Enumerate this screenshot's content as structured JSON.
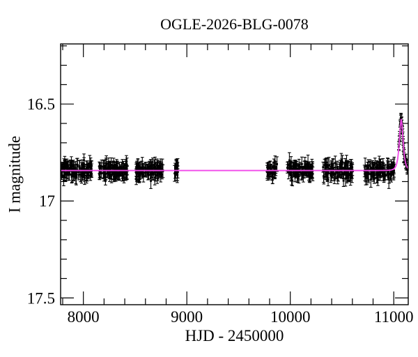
{
  "title": "OGLE-2026-BLG-0078",
  "axes": {
    "x_label": "HJD - 2450000",
    "y_label": "I magnitude"
  },
  "chart_data": {
    "type": "scatter",
    "title": "OGLE-2026-BLG-0078",
    "xlabel": "HJD - 2450000",
    "ylabel": "I magnitude",
    "x_range": [
      7780,
      11140
    ],
    "y_range_mag": [
      16.19,
      17.535
    ],
    "y_axis_inverted": true,
    "x_major_ticks": [
      8000,
      9000,
      10000,
      11000
    ],
    "x_tick_labels": [
      "8000",
      "9000",
      "10000",
      "11000"
    ],
    "x_minor_step": 200,
    "y_major_ticks": [
      16.5,
      17.0,
      17.5
    ],
    "y_tick_labels": [
      "16.5",
      "17",
      "17.5"
    ],
    "y_minor_step": 0.1,
    "baseline_mag": 16.843,
    "model": {
      "type": "paczynski",
      "t0": 11072,
      "tE": 20,
      "u0": 1.1,
      "peak_mag": 16.575
    },
    "seasons": [
      {
        "start": 7782,
        "end": 8085,
        "n": 110,
        "scatter": 0.02,
        "err": 0.03
      },
      {
        "start": 8150,
        "end": 8425,
        "n": 100,
        "scatter": 0.02,
        "err": 0.03
      },
      {
        "start": 8508,
        "end": 8775,
        "n": 90,
        "scatter": 0.02,
        "err": 0.03
      },
      {
        "start": 8880,
        "end": 8915,
        "n": 12,
        "scatter": 0.022,
        "err": 0.032
      },
      {
        "start": 9775,
        "end": 9885,
        "n": 30,
        "scatter": 0.02,
        "err": 0.03
      },
      {
        "start": 9970,
        "end": 10220,
        "n": 90,
        "scatter": 0.02,
        "err": 0.03
      },
      {
        "start": 10315,
        "end": 10605,
        "n": 100,
        "scatter": 0.02,
        "err": 0.03
      },
      {
        "start": 10712,
        "end": 11005,
        "n": 100,
        "scatter": 0.02,
        "err": 0.03
      }
    ],
    "event_season": {
      "start": 11048,
      "end": 11132,
      "cadence_days": 1.8,
      "scatter": 0.012,
      "err": 0.022
    },
    "colors": {
      "model_curve": "#f148e9",
      "data_points": "#000000",
      "axis": "#000000"
    },
    "legend": null
  }
}
